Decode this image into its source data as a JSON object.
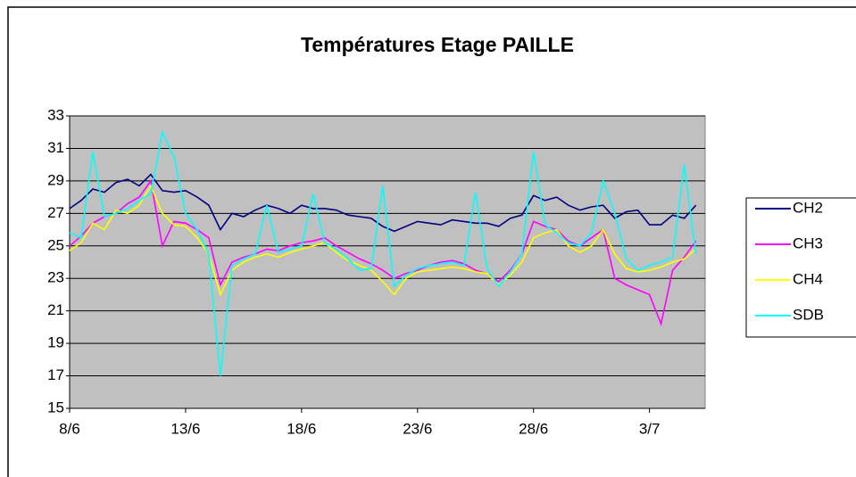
{
  "chart_data": {
    "type": "line",
    "title": "Températures Etage PAILLE",
    "categories": [
      "8/6",
      null,
      null,
      null,
      null,
      null,
      null,
      null,
      null,
      null,
      "13/6",
      null,
      null,
      null,
      null,
      null,
      null,
      null,
      null,
      null,
      "18/6",
      null,
      null,
      null,
      null,
      null,
      null,
      null,
      null,
      null,
      "23/6",
      null,
      null,
      null,
      null,
      null,
      null,
      null,
      null,
      null,
      "28/6",
      null,
      null,
      null,
      null,
      null,
      null,
      null,
      null,
      null,
      "3/7",
      null,
      null,
      null,
      null
    ],
    "series": [
      {
        "name": "CH2",
        "color": "#000080",
        "values": [
          27.3,
          27.8,
          28.5,
          28.3,
          28.9,
          29.1,
          28.7,
          29.4,
          28.4,
          28.3,
          28.4,
          28.0,
          27.5,
          26.0,
          27.0,
          26.8,
          27.2,
          27.5,
          27.3,
          27.0,
          27.5,
          27.3,
          27.3,
          27.2,
          26.9,
          26.8,
          26.7,
          26.2,
          25.9,
          26.2,
          26.5,
          26.4,
          26.3,
          26.6,
          26.5,
          26.4,
          26.4,
          26.2,
          26.7,
          26.9,
          28.1,
          27.8,
          28.0,
          27.5,
          27.2,
          27.4,
          27.5,
          26.7,
          27.1,
          27.2,
          26.3,
          26.3,
          26.9,
          26.7,
          27.5
        ]
      },
      {
        "name": "CH3",
        "color": "#ff00ff",
        "values": [
          25.0,
          25.6,
          26.4,
          26.8,
          27.0,
          27.6,
          28.0,
          29.0,
          25.0,
          26.5,
          26.4,
          26.0,
          25.5,
          22.6,
          24.0,
          24.3,
          24.5,
          24.8,
          24.7,
          25.0,
          25.2,
          25.3,
          25.5,
          25.0,
          24.6,
          24.2,
          23.9,
          23.5,
          23.0,
          23.3,
          23.5,
          23.8,
          24.0,
          24.1,
          23.9,
          23.5,
          23.3,
          22.8,
          23.5,
          24.5,
          26.5,
          26.2,
          26.0,
          25.3,
          25.0,
          25.5,
          26.0,
          23.0,
          22.6,
          22.3,
          22.0,
          20.2,
          23.5,
          24.3,
          25.3
        ]
      },
      {
        "name": "CH4",
        "color": "#ffff00",
        "values": [
          24.7,
          25.2,
          26.4,
          26.0,
          27.2,
          27.0,
          27.5,
          28.7,
          27.0,
          26.3,
          26.2,
          25.5,
          24.5,
          22.0,
          23.5,
          24.0,
          24.3,
          24.5,
          24.3,
          24.6,
          24.8,
          25.0,
          25.2,
          24.6,
          24.1,
          23.8,
          23.5,
          22.8,
          22.0,
          23.0,
          23.4,
          23.5,
          23.6,
          23.7,
          23.6,
          23.4,
          23.3,
          22.6,
          23.2,
          24.0,
          25.5,
          25.8,
          26.0,
          25.0,
          24.6,
          25.0,
          26.0,
          24.5,
          23.6,
          23.4,
          23.5,
          23.7,
          24.0,
          24.2,
          24.8
        ]
      },
      {
        "name": "SDB",
        "color": "#00ffff",
        "values": [
          25.8,
          25.5,
          30.8,
          26.8,
          27.0,
          27.3,
          27.8,
          28.2,
          32.0,
          30.5,
          27.0,
          26.0,
          24.5,
          17.0,
          23.8,
          24.2,
          24.5,
          27.5,
          24.6,
          24.8,
          25.0,
          28.2,
          25.2,
          24.8,
          24.2,
          23.5,
          23.6,
          28.7,
          22.5,
          23.2,
          23.6,
          23.8,
          23.9,
          24.0,
          23.8,
          28.3,
          23.6,
          22.5,
          23.4,
          24.5,
          30.8,
          26.3,
          25.8,
          25.2,
          25.0,
          25.8,
          29.0,
          27.0,
          24.2,
          23.5,
          23.8,
          24.0,
          24.3,
          30.0,
          24.5
        ]
      }
    ],
    "ylim": [
      15,
      33
    ],
    "yticks": [
      15,
      17,
      19,
      21,
      23,
      25,
      27,
      29,
      31,
      33
    ],
    "grid": true,
    "plot_background": "#c0c0c0",
    "legend": "right"
  }
}
